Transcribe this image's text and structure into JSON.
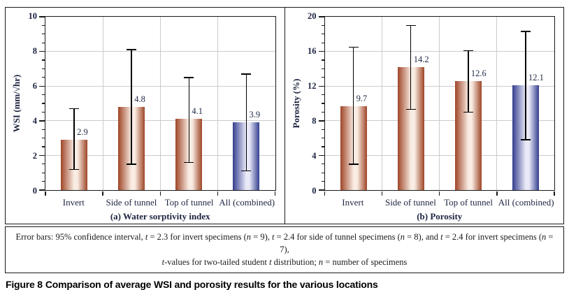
{
  "figure": {
    "caption_label": "Figure 8",
    "caption_text": "Comparison of average WSI and porosity results for the various locations"
  },
  "note": {
    "line1": "Error bars: 95% confidence interval, t = 2.3 for invert specimens (n = 9), t = 2.4 for side of tunnel specimens (n = 8), and t = 2.4 for invert specimens (n = 7),",
    "line2": "t-values for two-tailed student t distribution; n = number of specimens"
  },
  "colors": {
    "bar_red_dark": "#9e4527",
    "bar_red_light": "#f9ece3",
    "bar_blue_dark": "#333e8e",
    "bar_blue_light": "#e9e9f7",
    "grid": "#cbcbce",
    "axis": "#1a1a1a",
    "label_text": "#1c2440"
  },
  "chart_data": [
    {
      "type": "bar",
      "title": "(a) Water sorptivity index",
      "ylabel": "WSI (mm/√hr)",
      "ylim": [
        0,
        10
      ],
      "ytick_step": 2,
      "minor_step": 0.5,
      "grid": true,
      "categories": [
        "Invert",
        "Side of tunnel",
        "Top of tunnel",
        "All (combined)"
      ],
      "values": [
        2.9,
        4.8,
        4.1,
        3.9
      ],
      "error_low": [
        1.2,
        1.5,
        1.6,
        1.1
      ],
      "error_high": [
        4.7,
        8.1,
        6.5,
        6.7
      ],
      "bar_colors": [
        "red",
        "red",
        "red",
        "blue"
      ]
    },
    {
      "type": "bar",
      "title": "(b) Porosity",
      "ylabel": "Porosity (%)",
      "ylim": [
        0,
        20
      ],
      "ytick_step": 4,
      "minor_step": 1,
      "grid": true,
      "categories": [
        "Invert",
        "Side of tunnel",
        "Top of tunnel",
        "All (combined)"
      ],
      "values": [
        9.7,
        14.2,
        12.6,
        12.1
      ],
      "error_low": [
        3.0,
        9.3,
        9.0,
        5.8
      ],
      "error_high": [
        16.5,
        19.0,
        16.1,
        18.3
      ],
      "bar_colors": [
        "red",
        "red",
        "red",
        "blue"
      ]
    }
  ]
}
